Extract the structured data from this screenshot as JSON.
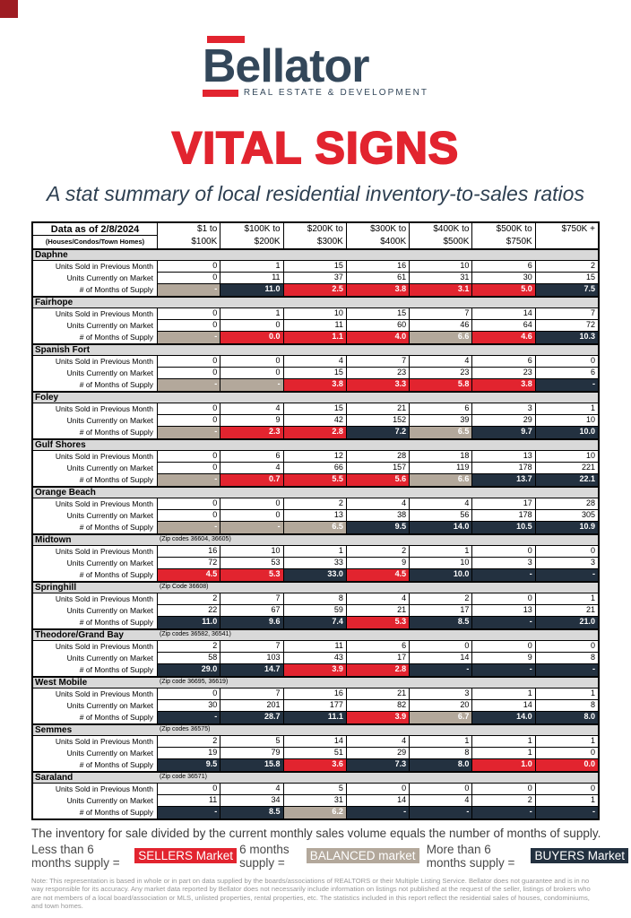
{
  "colors": {
    "red": "#e2242f",
    "navy": "#233140",
    "tan": "#b3a89b",
    "band": "#d9d9d9"
  },
  "logo": {
    "brand": "Bellator",
    "tagline": "REAL ESTATE & DEVELOPMENT"
  },
  "title": "VITAL SIGNS",
  "subtitle": "A stat summary of local residential inventory-to-sales ratios",
  "table": {
    "header": {
      "title": "Data as of 2/8/2024",
      "subtitle": "(Houses/Condos/Town Homes)",
      "columns": [
        {
          "top": "$1 to",
          "bottom": "$100K"
        },
        {
          "top": "$100K to",
          "bottom": "$200K"
        },
        {
          "top": "$200K to",
          "bottom": "$300K"
        },
        {
          "top": "$300K to",
          "bottom": "$400K"
        },
        {
          "top": "$400K to",
          "bottom": "$500K"
        },
        {
          "top": "$500K to",
          "bottom": "$750K"
        },
        {
          "top": "$750K +",
          "bottom": ""
        }
      ]
    },
    "row_labels": {
      "sold": "Units Sold in Previous Month",
      "market": "Units Currently on Market",
      "supply": "# of Months of Supply"
    },
    "cities": [
      {
        "name": "Daphne",
        "zip": "",
        "sold": [
          "0",
          "1",
          "15",
          "16",
          "10",
          "6",
          "2"
        ],
        "market": [
          "0",
          "11",
          "37",
          "61",
          "31",
          "30",
          "15"
        ],
        "supply": [
          {
            "t": "-",
            "c": "tan"
          },
          {
            "t": "11.0",
            "c": "navy"
          },
          {
            "t": "2.5",
            "c": "red"
          },
          {
            "t": "3.8",
            "c": "red"
          },
          {
            "t": "3.1",
            "c": "red"
          },
          {
            "t": "5.0",
            "c": "red"
          },
          {
            "t": "7.5",
            "c": "navy"
          }
        ]
      },
      {
        "name": "Fairhope",
        "zip": "",
        "sold": [
          "0",
          "1",
          "10",
          "15",
          "7",
          "14",
          "7"
        ],
        "market": [
          "0",
          "0",
          "11",
          "60",
          "46",
          "64",
          "72"
        ],
        "supply": [
          {
            "t": "-",
            "c": "tan"
          },
          {
            "t": "0.0",
            "c": "red"
          },
          {
            "t": "1.1",
            "c": "red"
          },
          {
            "t": "4.0",
            "c": "red"
          },
          {
            "t": "6.6",
            "c": "tan"
          },
          {
            "t": "4.6",
            "c": "red"
          },
          {
            "t": "10.3",
            "c": "navy"
          }
        ]
      },
      {
        "name": "Spanish Fort",
        "zip": "",
        "sold": [
          "0",
          "0",
          "4",
          "7",
          "4",
          "6",
          "0"
        ],
        "market": [
          "0",
          "0",
          "15",
          "23",
          "23",
          "23",
          "6"
        ],
        "supply": [
          {
            "t": "-",
            "c": "tan"
          },
          {
            "t": "-",
            "c": "tan"
          },
          {
            "t": "3.8",
            "c": "red"
          },
          {
            "t": "3.3",
            "c": "red"
          },
          {
            "t": "5.8",
            "c": "red"
          },
          {
            "t": "3.8",
            "c": "red"
          },
          {
            "t": "-",
            "c": "navy"
          }
        ]
      },
      {
        "name": "Foley",
        "zip": "",
        "sold": [
          "0",
          "4",
          "15",
          "21",
          "6",
          "3",
          "1"
        ],
        "market": [
          "0",
          "9",
          "42",
          "152",
          "39",
          "29",
          "10"
        ],
        "supply": [
          {
            "t": "-",
            "c": "tan"
          },
          {
            "t": "2.3",
            "c": "red"
          },
          {
            "t": "2.8",
            "c": "red"
          },
          {
            "t": "7.2",
            "c": "navy"
          },
          {
            "t": "6.5",
            "c": "tan"
          },
          {
            "t": "9.7",
            "c": "navy"
          },
          {
            "t": "10.0",
            "c": "navy"
          }
        ]
      },
      {
        "name": "Gulf Shores",
        "zip": "",
        "sold": [
          "0",
          "6",
          "12",
          "28",
          "18",
          "13",
          "10"
        ],
        "market": [
          "0",
          "4",
          "66",
          "157",
          "119",
          "178",
          "221"
        ],
        "supply": [
          {
            "t": "-",
            "c": "tan"
          },
          {
            "t": "0.7",
            "c": "red"
          },
          {
            "t": "5.5",
            "c": "red"
          },
          {
            "t": "5.6",
            "c": "red"
          },
          {
            "t": "6.6",
            "c": "tan"
          },
          {
            "t": "13.7",
            "c": "navy"
          },
          {
            "t": "22.1",
            "c": "navy"
          }
        ]
      },
      {
        "name": "Orange Beach",
        "zip": "",
        "sold": [
          "0",
          "0",
          "2",
          "4",
          "4",
          "17",
          "28"
        ],
        "market": [
          "0",
          "0",
          "13",
          "38",
          "56",
          "178",
          "305"
        ],
        "supply": [
          {
            "t": "-",
            "c": "tan"
          },
          {
            "t": "-",
            "c": "tan"
          },
          {
            "t": "6.5",
            "c": "tan"
          },
          {
            "t": "9.5",
            "c": "navy"
          },
          {
            "t": "14.0",
            "c": "navy"
          },
          {
            "t": "10.5",
            "c": "navy"
          },
          {
            "t": "10.9",
            "c": "navy"
          }
        ]
      },
      {
        "name": "Midtown",
        "zip": "(Zip codes 36604, 36605)",
        "sold": [
          "16",
          "10",
          "1",
          "2",
          "1",
          "0",
          "0"
        ],
        "market": [
          "72",
          "53",
          "33",
          "9",
          "10",
          "3",
          "3"
        ],
        "supply": [
          {
            "t": "4.5",
            "c": "red"
          },
          {
            "t": "5.3",
            "c": "red"
          },
          {
            "t": "33.0",
            "c": "navy"
          },
          {
            "t": "4.5",
            "c": "red"
          },
          {
            "t": "10.0",
            "c": "navy"
          },
          {
            "t": "-",
            "c": "navy"
          },
          {
            "t": "-",
            "c": "navy"
          }
        ]
      },
      {
        "name": "Springhill",
        "zip": "(Zip Code 36608)",
        "sold": [
          "2",
          "7",
          "8",
          "4",
          "2",
          "0",
          "1"
        ],
        "market": [
          "22",
          "67",
          "59",
          "21",
          "17",
          "13",
          "21"
        ],
        "supply": [
          {
            "t": "11.0",
            "c": "navy"
          },
          {
            "t": "9.6",
            "c": "navy"
          },
          {
            "t": "7.4",
            "c": "navy"
          },
          {
            "t": "5.3",
            "c": "red"
          },
          {
            "t": "8.5",
            "c": "navy"
          },
          {
            "t": "-",
            "c": "navy"
          },
          {
            "t": "21.0",
            "c": "navy"
          }
        ]
      },
      {
        "name": "Theodore/Grand Bay",
        "zip": "(Zip codes 36582, 36541)",
        "sold": [
          "2",
          "7",
          "11",
          "6",
          "0",
          "0",
          "0"
        ],
        "market": [
          "58",
          "103",
          "43",
          "17",
          "14",
          "9",
          "8"
        ],
        "supply": [
          {
            "t": "29.0",
            "c": "navy"
          },
          {
            "t": "14.7",
            "c": "navy"
          },
          {
            "t": "3.9",
            "c": "red"
          },
          {
            "t": "2.8",
            "c": "red"
          },
          {
            "t": "-",
            "c": "navy"
          },
          {
            "t": "-",
            "c": "navy"
          },
          {
            "t": "-",
            "c": "navy"
          }
        ]
      },
      {
        "name": "West Mobile",
        "zip": "(Zip code 36695, 36619)",
        "sold": [
          "0",
          "7",
          "16",
          "21",
          "3",
          "1",
          "1"
        ],
        "market": [
          "30",
          "201",
          "177",
          "82",
          "20",
          "14",
          "8"
        ],
        "supply": [
          {
            "t": "-",
            "c": "navy"
          },
          {
            "t": "28.7",
            "c": "navy"
          },
          {
            "t": "11.1",
            "c": "navy"
          },
          {
            "t": "3.9",
            "c": "red"
          },
          {
            "t": "6.7",
            "c": "tan"
          },
          {
            "t": "14.0",
            "c": "navy"
          },
          {
            "t": "8.0",
            "c": "navy"
          }
        ]
      },
      {
        "name": "Semmes",
        "zip": "(Zip codes 36575)",
        "sold": [
          "2",
          "5",
          "14",
          "4",
          "1",
          "1",
          "1"
        ],
        "market": [
          "19",
          "79",
          "51",
          "29",
          "8",
          "1",
          "0"
        ],
        "supply": [
          {
            "t": "9.5",
            "c": "navy"
          },
          {
            "t": "15.8",
            "c": "navy"
          },
          {
            "t": "3.6",
            "c": "red"
          },
          {
            "t": "7.3",
            "c": "navy"
          },
          {
            "t": "8.0",
            "c": "navy"
          },
          {
            "t": "1.0",
            "c": "red"
          },
          {
            "t": "0.0",
            "c": "red"
          }
        ]
      },
      {
        "name": "Saraland",
        "zip": "(Zip code 36571)",
        "sold": [
          "0",
          "4",
          "5",
          "0",
          "0",
          "0",
          "0"
        ],
        "market": [
          "11",
          "34",
          "31",
          "14",
          "4",
          "2",
          "1"
        ],
        "supply": [
          {
            "t": "-",
            "c": "navy"
          },
          {
            "t": "8.5",
            "c": "navy"
          },
          {
            "t": "6.2",
            "c": "tan"
          },
          {
            "t": "-",
            "c": "navy"
          },
          {
            "t": "-",
            "c": "navy"
          },
          {
            "t": "-",
            "c": "navy"
          },
          {
            "t": "-",
            "c": "navy"
          }
        ]
      }
    ]
  },
  "legend": {
    "line1": "The inventory for sale divided by the current monthly sales volume equals the number of months of supply.",
    "less_label": "Less than 6 months supply =",
    "sellers": "SELLERS Market",
    "six_label": "6 months supply =",
    "balanced": "BALANCED market",
    "more_label": "More than 6 months supply =",
    "buyers": "BUYERS Market"
  },
  "note": "Note: This representation is based in whole or in part on data supplied by the boards/associations of REALTORS or their Multiple Listing Service. Bellator does not guarantee and is in no way responsible for its accuracy. Any market data reported by Bellator does not necessarily include information on listings not published at the request of the seller, listings of brokers who are not members of a local board/association or MLS, unlisted properties, rental properties, etc. The statistics included in this report reflect the residential sales of houses, condominiums, and town homes."
}
